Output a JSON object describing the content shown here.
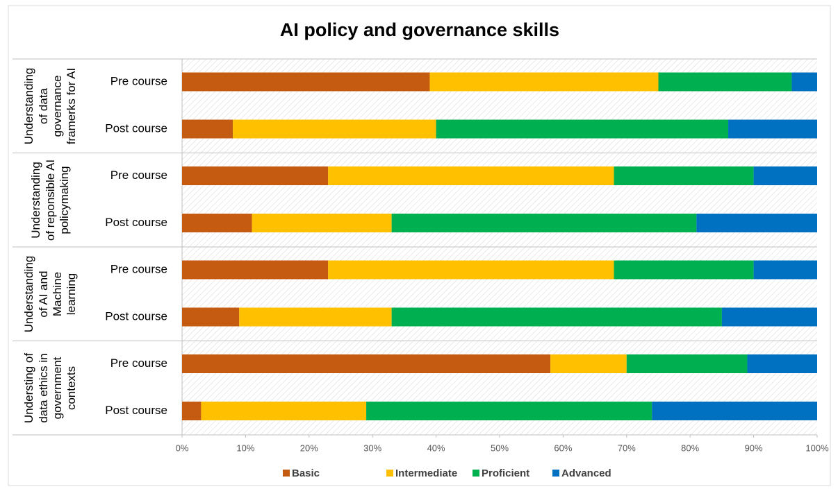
{
  "chart_data": {
    "type": "bar",
    "orientation": "horizontal",
    "stacked": true,
    "title": "AI policy and governance skills",
    "groups": [
      "Understanding of data governance framerks for AI",
      "Understanding of reponsible AI policymaking",
      "Understanding of AI and Machine learning",
      "Understing of data ethics in government contexts"
    ],
    "categories": [
      "Pre course",
      "Post course",
      "Pre course",
      "Post course",
      "Pre course",
      "Post course",
      "Pre course",
      "Post course"
    ],
    "series": [
      {
        "name": "Basic",
        "color": "#c55a11",
        "values": [
          39,
          8,
          23,
          11,
          23,
          9,
          58,
          3
        ]
      },
      {
        "name": "Intermediate",
        "color": "#ffc000",
        "values": [
          36,
          32,
          45,
          22,
          45,
          24,
          12,
          26
        ]
      },
      {
        "name": "Proficient",
        "color": "#00b050",
        "values": [
          21,
          46,
          22,
          48,
          22,
          52,
          19,
          45
        ]
      },
      {
        "name": "Advanced",
        "color": "#0070c0",
        "values": [
          4,
          14,
          10,
          19,
          10,
          15,
          11,
          26
        ]
      }
    ],
    "xlim": [
      0,
      100
    ],
    "xticks": [
      {
        "value": 0,
        "label": "0%"
      },
      {
        "value": 10,
        "label": "10%"
      },
      {
        "value": 20,
        "label": "20%"
      },
      {
        "value": 30,
        "label": "30%"
      },
      {
        "value": 40,
        "label": "40%"
      },
      {
        "value": 50,
        "label": "50%"
      },
      {
        "value": 60,
        "label": "60%"
      },
      {
        "value": 70,
        "label": "70%"
      },
      {
        "value": 80,
        "label": "80%"
      },
      {
        "value": 90,
        "label": "90%"
      },
      {
        "value": 100,
        "label": "100%"
      }
    ],
    "legend": "bottom"
  }
}
